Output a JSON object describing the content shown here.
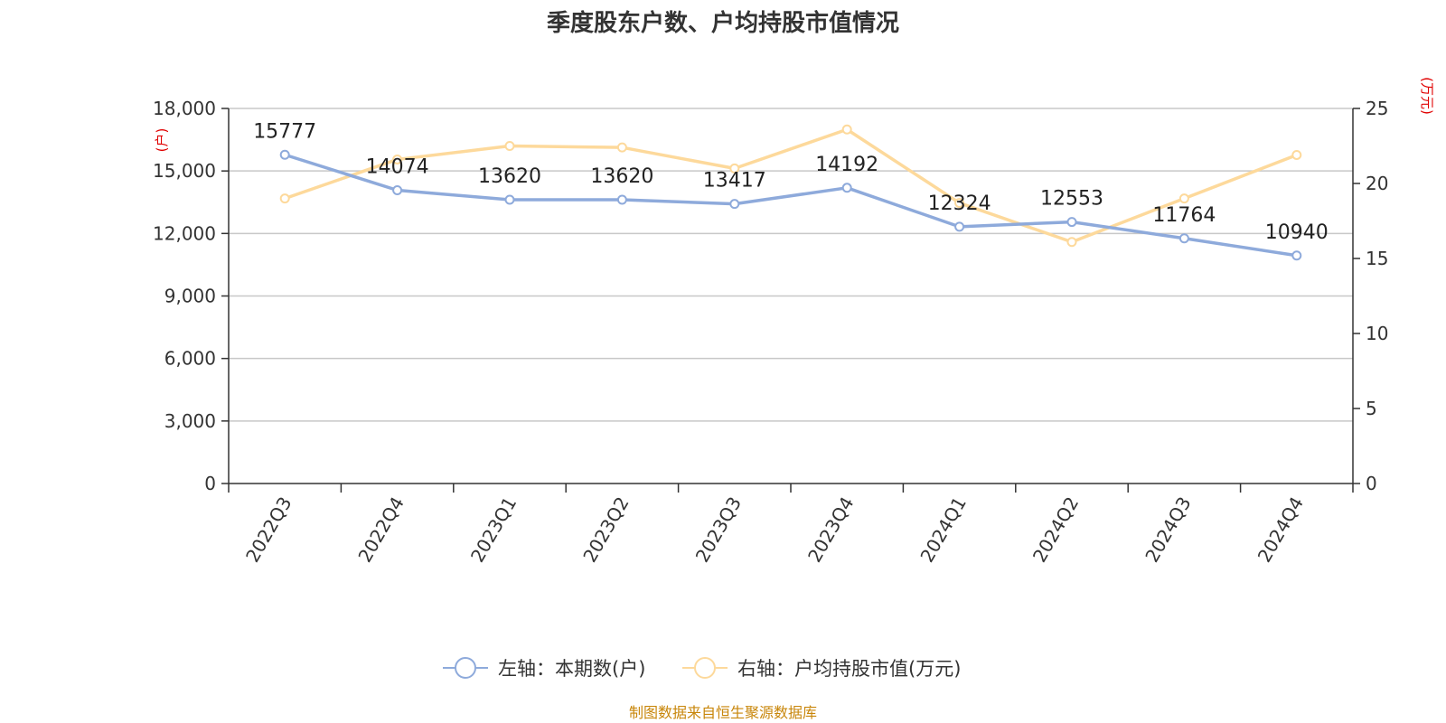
{
  "chart_data": {
    "type": "line",
    "title": "季度股东户数、户均持股市值情况",
    "categories": [
      "2022Q3",
      "2022Q4",
      "2023Q1",
      "2023Q2",
      "2023Q3",
      "2023Q4",
      "2024Q1",
      "2024Q2",
      "2024Q3",
      "2024Q4"
    ],
    "left_axis": {
      "unit_label": "(户)",
      "ylim": [
        0,
        18000
      ],
      "ticks": [
        "0",
        "3,000",
        "6,000",
        "9,000",
        "12,000",
        "15,000",
        "18,000"
      ]
    },
    "right_axis": {
      "unit_label": "(万元)",
      "ylim": [
        0,
        25
      ],
      "ticks": [
        "0",
        "5",
        "10",
        "15",
        "20",
        "25"
      ]
    },
    "series": [
      {
        "name": "左轴：本期数(户)",
        "axis": "left",
        "color": "#8eaadb",
        "values": [
          15777,
          14074,
          13620,
          13620,
          13417,
          14192,
          12324,
          12553,
          11764,
          10940
        ],
        "labels": [
          "15777",
          "14074",
          "13620",
          "13620",
          "13417",
          "14192",
          "12324",
          "12553",
          "11764",
          "10940"
        ]
      },
      {
        "name": "右轴：户均持股市值(万元)",
        "axis": "right",
        "color": "#fdd99b",
        "values": [
          19.0,
          21.6,
          22.5,
          22.4,
          21.0,
          23.6,
          18.7,
          16.1,
          19.0,
          21.9
        ]
      }
    ],
    "grid": true,
    "legend_position": "bottom-center",
    "source": "制图数据来自恒生聚源数据库"
  }
}
